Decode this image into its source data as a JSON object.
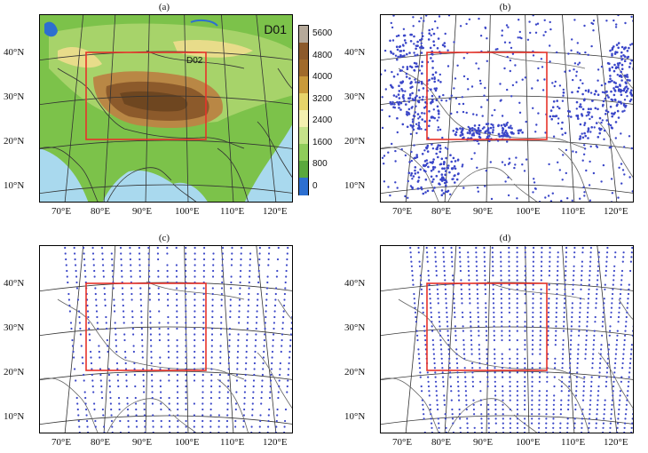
{
  "panels": [
    {
      "id": "a",
      "title": "(a)"
    },
    {
      "id": "b",
      "title": "(b)"
    },
    {
      "id": "c",
      "title": "(c)"
    },
    {
      "id": "d",
      "title": "(d)"
    }
  ],
  "lat_labels": [
    "40°N",
    "30°N",
    "20°N",
    "10°N"
  ],
  "lon_labels": [
    "70°E",
    "80°E",
    "90°E",
    "100°E",
    "110°E",
    "120°E"
  ],
  "domain_outer": "D01",
  "domain_inner": "D02",
  "colorbar": {
    "ticks": [
      "5600",
      "4800",
      "4000",
      "3200",
      "2400",
      "1600",
      "800",
      "0"
    ],
    "colors": [
      "#b5a99a",
      "#8c5a2b",
      "#a06a2a",
      "#c99a3a",
      "#e7d46a",
      "#f4f0b0",
      "#c6e38a",
      "#8fcc5a",
      "#5aa83d",
      "#2d6fd0"
    ]
  },
  "colors": {
    "box": "#e8332a",
    "station": "#3a46c8",
    "ocean": "#a9d9ee",
    "land_low": "#5aa83d",
    "plateau": "#8c5a2b"
  }
}
